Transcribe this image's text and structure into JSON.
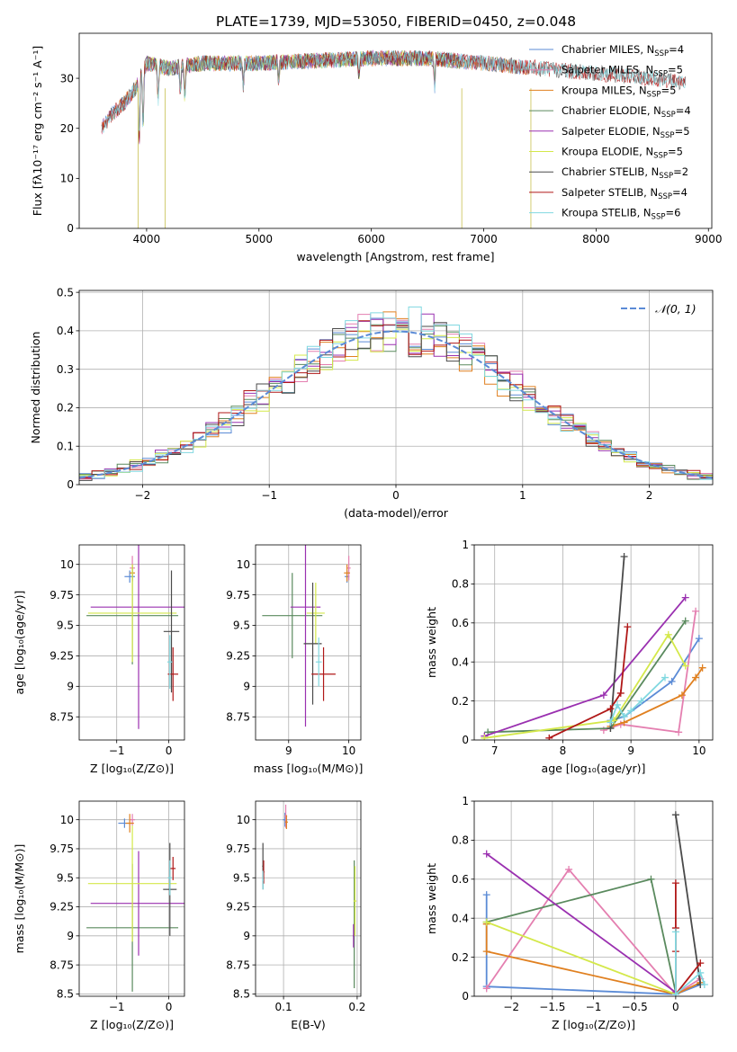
{
  "figure": {
    "title": "PLATE=1739, MJD=53050, FIBERID=0450, z=0.048"
  },
  "colors": {
    "Chabrier MILES": "#5b8bd6",
    "Salpeter MILES": "#e47fb0",
    "Kroupa MILES": "#e08020",
    "Chabrier ELODIE": "#5a8a5e",
    "Salpeter ELODIE": "#9a30b0",
    "Kroupa ELODIE": "#d4e84a",
    "Chabrier STELIB": "#4a4a4a",
    "Salpeter STELIB": "#b01818",
    "Kroupa STELIB": "#80d8e0"
  },
  "chart_data": [
    {
      "id": "spectrum",
      "type": "line",
      "title": "PLATE=1739, MJD=53050, FIBERID=0450, z=0.048",
      "xlabel": "wavelength [Angstrom, rest frame]",
      "ylabel": "Flux [fλ10⁻¹⁷ erg cm⁻² s⁻¹ A⁻¹]",
      "xlim": [
        3400,
        9030
      ],
      "ylim": [
        0,
        39
      ],
      "xticks": [
        4000,
        5000,
        6000,
        7000,
        8000,
        9000
      ],
      "yticks": [
        0,
        10,
        20,
        30
      ],
      "grid": false,
      "legend": "right",
      "legend_entries": [
        {
          "label": "Chabrier MILES, N",
          "sub": "SSP",
          "tail": "=4"
        },
        {
          "label": "Salpeter MILES, N",
          "sub": "SSP",
          "tail": "=5"
        },
        {
          "label": "Kroupa MILES, N",
          "sub": "SSP",
          "tail": "=5"
        },
        {
          "label": "Chabrier ELODIE, N",
          "sub": "SSP",
          "tail": "=4"
        },
        {
          "label": "Salpeter ELODIE, N",
          "sub": "SSP",
          "tail": "=5"
        },
        {
          "label": "Kroupa ELODIE, N",
          "sub": "SSP",
          "tail": "=5"
        },
        {
          "label": "Chabrier STELIB, N",
          "sub": "SSP",
          "tail": "=2"
        },
        {
          "label": "Salpeter STELIB, N",
          "sub": "SSP",
          "tail": "=4"
        },
        {
          "label": "Kroupa STELIB, N",
          "sub": "SSP",
          "tail": "=6"
        }
      ],
      "continuum": [
        [
          3600,
          20
        ],
        [
          3700,
          23
        ],
        [
          3800,
          25
        ],
        [
          3900,
          28
        ],
        [
          4000,
          33
        ],
        [
          4200,
          32
        ],
        [
          4500,
          33
        ],
        [
          5000,
          33
        ],
        [
          5500,
          33.5
        ],
        [
          6000,
          34
        ],
        [
          6500,
          34
        ],
        [
          7000,
          33
        ],
        [
          7500,
          32
        ],
        [
          8000,
          31
        ],
        [
          8500,
          30
        ],
        [
          8800,
          29
        ]
      ],
      "series": [
        {
          "name": "Chabrier MILES",
          "range": [
            3600,
            7400
          ]
        },
        {
          "name": "Salpeter MILES",
          "range": [
            3600,
            7400
          ]
        },
        {
          "name": "Kroupa MILES",
          "range": [
            3600,
            7400
          ]
        },
        {
          "name": "Chabrier ELODIE",
          "range": [
            3900,
            6800
          ]
        },
        {
          "name": "Salpeter ELODIE",
          "range": [
            3900,
            6800
          ]
        },
        {
          "name": "Kroupa ELODIE",
          "range": [
            3900,
            6800
          ]
        },
        {
          "name": "Chabrier STELIB",
          "range": [
            3600,
            8800
          ]
        },
        {
          "name": "Salpeter STELIB",
          "range": [
            3600,
            8800
          ]
        },
        {
          "name": "Kroupa STELIB",
          "range": [
            3600,
            8800
          ]
        }
      ]
    },
    {
      "id": "residuals",
      "type": "line",
      "xlabel": "(data-model)/error",
      "ylabel": "Normed distribution",
      "xlim": [
        -2.5,
        2.5
      ],
      "ylim": [
        0,
        0.505
      ],
      "xticks": [
        -2,
        -1,
        0,
        1,
        2
      ],
      "yticks": [
        0.0,
        0.1,
        0.2,
        0.3,
        0.4,
        0.5
      ],
      "grid": true,
      "legend": "top-right",
      "reference": {
        "label": "𝒩(0, 1)",
        "mean": 0,
        "sigma": 1
      },
      "bin_width": 0.1,
      "series": [
        {
          "name": "Chabrier MILES"
        },
        {
          "name": "Salpeter MILES"
        },
        {
          "name": "Kroupa MILES"
        },
        {
          "name": "Chabrier ELODIE"
        },
        {
          "name": "Salpeter ELODIE"
        },
        {
          "name": "Kroupa ELODIE"
        },
        {
          "name": "Chabrier STELIB"
        },
        {
          "name": "Salpeter STELIB"
        },
        {
          "name": "Kroupa STELIB"
        }
      ]
    },
    {
      "id": "age_vs_Z",
      "type": "scatter",
      "xlabel": "Z [log₁₀(Z/Z⊙)]",
      "ylabel": "age  [log₁₀(age/yr)]",
      "xlim": [
        -1.72,
        0.3
      ],
      "ylim": [
        8.56,
        10.16
      ],
      "xticks": [
        -1,
        0
      ],
      "yticks": [
        8.75,
        9.0,
        9.25,
        9.5,
        9.75,
        10.0
      ],
      "grid": true,
      "points": [
        {
          "series": "Chabrier MILES",
          "x": -0.75,
          "y": 9.9,
          "xerr": 0.1,
          "yerr": 0.05
        },
        {
          "series": "Salpeter MILES",
          "x": -0.7,
          "y": 9.97,
          "xerr": 0.05,
          "yerr": 0.1
        },
        {
          "series": "Kroupa MILES",
          "x": -0.7,
          "y": 9.93,
          "xerr": 0.05,
          "yerr": 0.07
        },
        {
          "series": "Chabrier ELODIE",
          "x": -0.7,
          "y": 9.58,
          "xerr": 0.88,
          "yerr": 0.4
        },
        {
          "series": "Salpeter ELODIE",
          "x": -0.58,
          "y": 9.65,
          "xerr": 0.92,
          "yerr": 1.0
        },
        {
          "series": "Kroupa ELODIE",
          "x": -0.7,
          "y": 9.6,
          "xerr": 0.85,
          "yerr": 0.4
        },
        {
          "series": "Chabrier STELIB",
          "x": 0.05,
          "y": 9.45,
          "xerr": 0.15,
          "yerr": 0.5
        },
        {
          "series": "Salpeter STELIB",
          "x": 0.08,
          "y": 9.1,
          "xerr": 0.1,
          "yerr": 0.22
        },
        {
          "series": "Kroupa STELIB",
          "x": 0.02,
          "y": 9.2,
          "xerr": 0.05,
          "yerr": 0.22
        }
      ]
    },
    {
      "id": "age_vs_mass",
      "type": "scatter",
      "xlabel": "mass [log₁₀(M/M⊙)]",
      "ylabel": "",
      "xlim": [
        8.45,
        10.2
      ],
      "ylim": [
        8.56,
        10.16
      ],
      "xticks": [
        9,
        10
      ],
      "yticks": [
        8.75,
        9.0,
        9.25,
        9.5,
        9.75,
        10.0
      ],
      "grid": true,
      "points": [
        {
          "series": "Chabrier MILES",
          "x": 9.97,
          "y": 9.9,
          "xerr": 0.04,
          "yerr": 0.05
        },
        {
          "series": "Salpeter MILES",
          "x": 10.0,
          "y": 9.97,
          "xerr": 0.03,
          "yerr": 0.1
        },
        {
          "series": "Kroupa MILES",
          "x": 9.97,
          "y": 9.93,
          "xerr": 0.05,
          "yerr": 0.07
        },
        {
          "series": "Chabrier ELODIE",
          "x": 9.06,
          "y": 9.58,
          "xerr": 0.5,
          "yerr": 0.35
        },
        {
          "series": "Salpeter ELODIE",
          "x": 9.28,
          "y": 9.65,
          "xerr": 0.25,
          "yerr": 0.98
        },
        {
          "series": "Kroupa ELODIE",
          "x": 9.45,
          "y": 9.6,
          "xerr": 0.15,
          "yerr": 0.25
        },
        {
          "series": "Chabrier STELIB",
          "x": 9.4,
          "y": 9.35,
          "xerr": 0.15,
          "yerr": 0.5
        },
        {
          "series": "Salpeter STELIB",
          "x": 9.58,
          "y": 9.1,
          "xerr": 0.2,
          "yerr": 0.22
        },
        {
          "series": "Kroupa STELIB",
          "x": 9.5,
          "y": 9.2,
          "xerr": 0.05,
          "yerr": 0.2
        }
      ]
    },
    {
      "id": "weight_vs_age",
      "type": "line",
      "xlabel": "age  [log₁₀(age/yr)]",
      "ylabel": "mass weight",
      "xlim": [
        6.7,
        10.2
      ],
      "ylim": [
        0,
        1.0
      ],
      "xticks": [
        7,
        8,
        9,
        10
      ],
      "yticks": [
        0.0,
        0.2,
        0.4,
        0.6,
        0.8,
        1.0
      ],
      "grid": true,
      "series": [
        {
          "name": "Chabrier MILES",
          "x": [
            8.7,
            8.9,
            9.6,
            10.0
          ],
          "y": [
            0.1,
            0.12,
            0.3,
            0.52
          ]
        },
        {
          "name": "Salpeter MILES",
          "x": [
            8.6,
            8.85,
            9.7,
            9.95
          ],
          "y": [
            0.05,
            0.08,
            0.04,
            0.66
          ]
        },
        {
          "name": "Kroupa MILES",
          "x": [
            8.7,
            8.9,
            9.75,
            9.95,
            10.05
          ],
          "y": [
            0.07,
            0.09,
            0.23,
            0.32,
            0.37
          ]
        },
        {
          "name": "Chabrier ELODIE",
          "x": [
            6.9,
            8.7,
            9.8
          ],
          "y": [
            0.04,
            0.06,
            0.61
          ]
        },
        {
          "name": "Salpeter ELODIE",
          "x": [
            6.85,
            8.6,
            9.8
          ],
          "y": [
            0.02,
            0.23,
            0.73
          ]
        },
        {
          "name": "Kroupa ELODIE",
          "x": [
            6.85,
            8.75,
            9.55,
            9.8
          ],
          "y": [
            0.01,
            0.1,
            0.54,
            0.38
          ]
        },
        {
          "name": "Chabrier STELIB",
          "x": [
            8.7,
            8.9
          ],
          "y": [
            0.06,
            0.94
          ]
        },
        {
          "name": "Salpeter STELIB",
          "x": [
            7.8,
            8.7,
            8.85,
            8.95
          ],
          "y": [
            0.01,
            0.16,
            0.24,
            0.58
          ]
        },
        {
          "name": "Kroupa STELIB",
          "x": [
            8.7,
            8.8,
            8.9,
            9.0,
            9.15,
            9.5
          ],
          "y": [
            0.09,
            0.18,
            0.12,
            0.15,
            0.2,
            0.32
          ]
        }
      ]
    },
    {
      "id": "mass_vs_Z",
      "type": "scatter",
      "xlabel": "Z [log₁₀(Z/Z⊙)]",
      "ylabel": "mass [log₁₀(M/M⊙)]",
      "xlim": [
        -1.72,
        0.3
      ],
      "ylim": [
        8.48,
        10.16
      ],
      "xticks": [
        -1,
        0
      ],
      "yticks": [
        8.5,
        8.75,
        9.0,
        9.25,
        9.5,
        9.75,
        10.0
      ],
      "grid": true,
      "points": [
        {
          "series": "Chabrier MILES",
          "x": -0.85,
          "y": 9.97,
          "xerr": 0.12,
          "yerr": 0.04
        },
        {
          "series": "Salpeter MILES",
          "x": -0.7,
          "y": 10.0,
          "xerr": 0.05,
          "yerr": 0.05
        },
        {
          "series": "Kroupa MILES",
          "x": -0.75,
          "y": 9.97,
          "xerr": 0.08,
          "yerr": 0.08
        },
        {
          "series": "Chabrier ELODIE",
          "x": -0.7,
          "y": 9.07,
          "xerr": 0.88,
          "yerr": 0.55
        },
        {
          "series": "Salpeter ELODIE",
          "x": -0.58,
          "y": 9.28,
          "xerr": 0.92,
          "yerr": 0.45
        },
        {
          "series": "Kroupa ELODIE",
          "x": -0.7,
          "y": 9.45,
          "xerr": 0.85,
          "yerr": 0.5
        },
        {
          "series": "Chabrier STELIB",
          "x": 0.02,
          "y": 9.4,
          "xerr": 0.13,
          "yerr": 0.4
        },
        {
          "series": "Salpeter STELIB",
          "x": 0.08,
          "y": 9.58,
          "xerr": 0.05,
          "yerr": 0.1
        },
        {
          "series": "Kroupa STELIB",
          "x": 0.02,
          "y": 9.5,
          "xerr": 0.04,
          "yerr": 0.15
        }
      ]
    },
    {
      "id": "mass_vs_EBV",
      "type": "scatter",
      "xlabel": "E(B-V)",
      "ylabel": "",
      "xlim": [
        0.062,
        0.205
      ],
      "ylim": [
        8.48,
        10.16
      ],
      "xticks": [
        0.1,
        0.2
      ],
      "yticks": [
        8.5,
        8.75,
        9.0,
        9.25,
        9.5,
        9.75,
        10.0
      ],
      "grid": true,
      "points": [
        {
          "series": "Chabrier MILES",
          "x": 0.102,
          "y": 10.0,
          "xerr": 0.003,
          "yerr": 0.06
        },
        {
          "series": "Salpeter MILES",
          "x": 0.103,
          "y": 10.03,
          "xerr": 0.002,
          "yerr": 0.1
        },
        {
          "series": "Kroupa MILES",
          "x": 0.104,
          "y": 9.98,
          "xerr": 0.002,
          "yerr": 0.06
        },
        {
          "series": "Chabrier ELODIE",
          "x": 0.196,
          "y": 9.1,
          "xerr": 0.001,
          "yerr": 0.55
        },
        {
          "series": "Salpeter ELODIE",
          "x": 0.195,
          "y": 9.0,
          "xerr": 0.001,
          "yerr": 0.1
        },
        {
          "series": "Kroupa ELODIE",
          "x": 0.197,
          "y": 9.3,
          "xerr": 0.002,
          "yerr": 0.3
        },
        {
          "series": "Chabrier STELIB",
          "x": 0.072,
          "y": 9.6,
          "xerr": 0.001,
          "yerr": 0.2
        },
        {
          "series": "Salpeter STELIB",
          "x": 0.073,
          "y": 9.55,
          "xerr": 0.001,
          "yerr": 0.1
        },
        {
          "series": "Kroupa STELIB",
          "x": 0.072,
          "y": 9.48,
          "xerr": 0.001,
          "yerr": 0.08
        }
      ]
    },
    {
      "id": "weight_vs_Z",
      "type": "line",
      "xlabel": "Z [log₁₀(Z/Z⊙)]",
      "ylabel": "mass weight",
      "xlim": [
        -2.45,
        0.45
      ],
      "ylim": [
        0,
        1.0
      ],
      "xticks": [
        -2.0,
        -1.5,
        -1.0,
        -0.5,
        0.0
      ],
      "yticks": [
        0.0,
        0.2,
        0.4,
        0.6,
        0.8,
        1.0
      ],
      "grid": true,
      "series": [
        {
          "name": "Chabrier MILES",
          "x": [
            -2.3,
            -2.3,
            0.0,
            0.3
          ],
          "y": [
            0.52,
            0.05,
            0.01,
            0.06
          ]
        },
        {
          "name": "Salpeter MILES",
          "x": [
            -2.3,
            -1.3,
            0.0,
            0.3
          ],
          "y": [
            0.04,
            0.65,
            0.01,
            0.09
          ]
        },
        {
          "name": "Kroupa MILES",
          "x": [
            -2.3,
            -2.3,
            0.0,
            0.3
          ],
          "y": [
            0.37,
            0.23,
            0.01,
            0.07
          ]
        },
        {
          "name": "Chabrier ELODIE",
          "x": [
            -2.3,
            -0.3,
            0.0
          ],
          "y": [
            0.38,
            0.6,
            0.02
          ]
        },
        {
          "name": "Salpeter ELODIE",
          "x": [
            -2.3,
            0.0
          ],
          "y": [
            0.73,
            0.02
          ]
        },
        {
          "name": "Kroupa ELODIE",
          "x": [
            -2.3,
            0.0
          ],
          "y": [
            0.38,
            0.01
          ]
        },
        {
          "name": "Chabrier STELIB",
          "x": [
            0.0,
            0.3
          ],
          "y": [
            0.93,
            0.06
          ]
        },
        {
          "name": "Salpeter STELIB",
          "x": [
            0.0,
            0.0,
            0.0,
            0.0,
            0.3
          ],
          "y": [
            0.58,
            0.35,
            0.23,
            0.01,
            0.17
          ]
        },
        {
          "name": "Kroupa STELIB",
          "x": [
            0.0,
            0.0,
            0.3,
            0.35
          ],
          "y": [
            0.33,
            0.01,
            0.12,
            0.06
          ]
        }
      ]
    }
  ]
}
